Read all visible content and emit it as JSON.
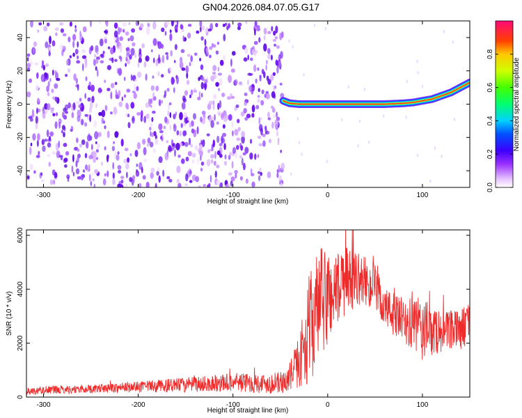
{
  "title": "GN04.2026.084.07.05.G17",
  "colors": {
    "snr_line": "#ee2b2b",
    "spectro_noise": "#7b1ff2",
    "axis": "#000000"
  },
  "chart_data": [
    {
      "type": "heatmap",
      "title": "GN04.2026.084.07.05.G17",
      "xlabel": "Height of straight line (km)",
      "ylabel": "Frequency (Hz)",
      "xlim": [
        -318,
        150
      ],
      "ylim": [
        -50,
        50
      ],
      "x_ticks": [
        -300,
        -200,
        -100,
        0,
        100
      ],
      "x_tick_labels": [
        "-300",
        "-200",
        "-100",
        "0",
        "100"
      ],
      "y_ticks": [
        -40,
        -20,
        0,
        20,
        40
      ],
      "y_tick_labels": [
        "-40",
        "-20",
        "0",
        "20",
        "40"
      ],
      "noise_region_x": [
        -318,
        -47
      ],
      "signal_track": {
        "x": [
          -47,
          -40,
          -30,
          -20,
          -10,
          0,
          20,
          40,
          60,
          80,
          90,
          100,
          110,
          120,
          130,
          140,
          150
        ],
        "freq_hz": [
          2,
          0.5,
          0,
          0,
          0,
          0,
          0,
          0,
          0,
          0.5,
          1,
          2,
          3,
          5,
          7,
          10,
          13
        ]
      },
      "colorbar": {
        "label": "Normalized spectral amplitude",
        "range": [
          0,
          1
        ],
        "ticks": [
          0.0,
          0.2,
          0.4,
          0.6,
          0.8
        ],
        "tick_labels": [
          "0.0",
          "0.2",
          "0.4",
          "0.6",
          "0.8"
        ]
      }
    },
    {
      "type": "line",
      "xlabel": "Height of straight line (km)",
      "ylabel": "SNR (10 * v/v)",
      "xlim": [
        -318,
        150
      ],
      "ylim": [
        0,
        6200
      ],
      "x_ticks": [
        -300,
        -200,
        -100,
        0,
        100
      ],
      "x_tick_labels": [
        "-300",
        "-200",
        "-100",
        "0",
        "100"
      ],
      "y_ticks": [
        0,
        2000,
        4000,
        6000
      ],
      "y_tick_labels": [
        "0",
        "2000",
        "4000",
        "6000"
      ],
      "series": [
        {
          "name": "SNR",
          "x": [
            -318,
            -300,
            -250,
            -200,
            -150,
            -100,
            -60,
            -45,
            -35,
            -25,
            -20,
            -10,
            0,
            10,
            20,
            30,
            40,
            50,
            60,
            80,
            100,
            120,
            140,
            150
          ],
          "y": [
            200,
            260,
            300,
            380,
            450,
            550,
            500,
            550,
            1000,
            1800,
            2500,
            3300,
            3700,
            4000,
            4300,
            4400,
            4300,
            4000,
            3300,
            2800,
            2500,
            2400,
            2500,
            2800
          ],
          "amplitude": [
            120,
            150,
            150,
            200,
            280,
            350,
            380,
            420,
            700,
            1400,
            2000,
            2200,
            1900,
            1400,
            1300,
            1000,
            900,
            900,
            800,
            850,
            1200,
            750,
            750,
            800
          ]
        }
      ]
    }
  ]
}
